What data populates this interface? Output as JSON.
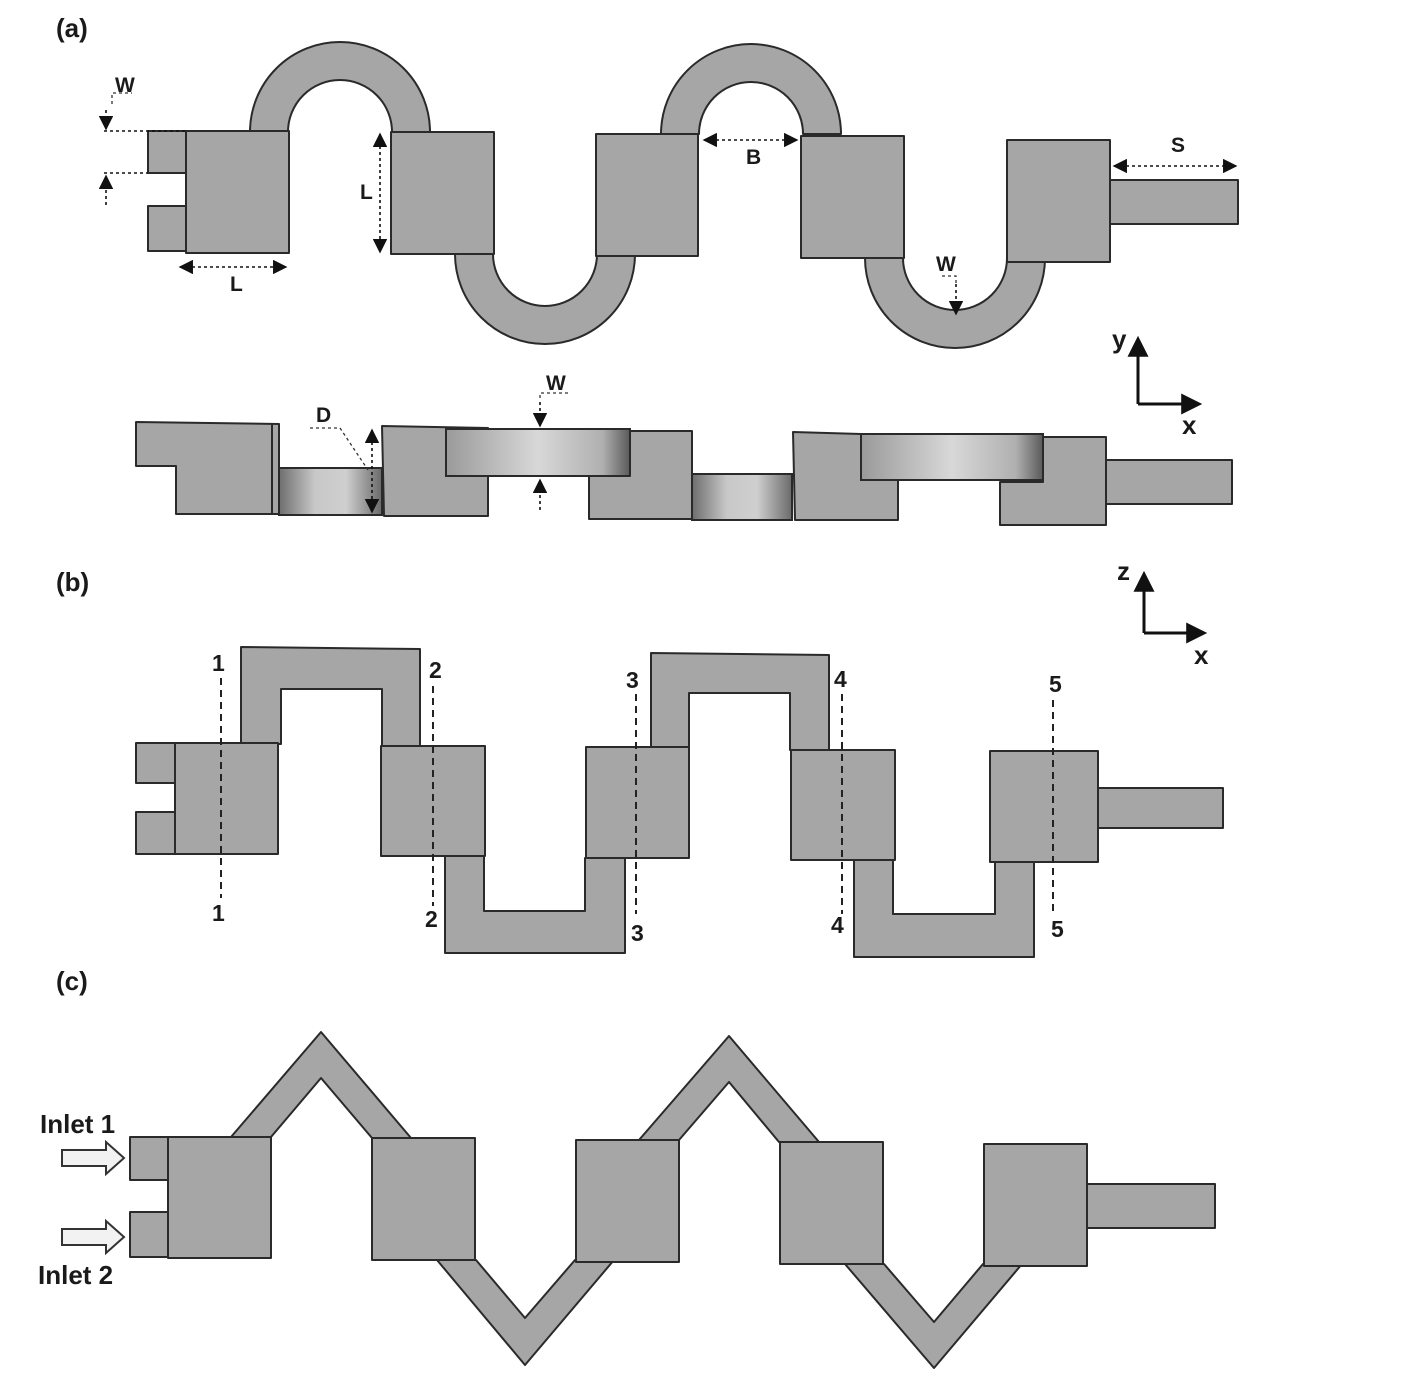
{
  "panels": {
    "a": {
      "label": "(a)",
      "dimensions": {
        "W_inlet": "W",
        "L_vertical": "L",
        "L_horizontal": "L",
        "B": "B",
        "S": "S",
        "W_bottom": "W",
        "W_side": "W",
        "D": "D"
      },
      "axes": {
        "vertical": "y",
        "horizontal": "x"
      }
    },
    "b": {
      "label": "(b)",
      "axes": {
        "vertical": "z",
        "horizontal": "x"
      },
      "sections": [
        {
          "top": "1",
          "bottom": "1"
        },
        {
          "top": "2",
          "bottom": "2"
        },
        {
          "top": "3",
          "bottom": "3"
        },
        {
          "top": "4",
          "bottom": "4"
        },
        {
          "top": "5",
          "bottom": "5"
        }
      ]
    },
    "c": {
      "label": "(c)",
      "inlets": [
        "Inlet 1",
        "Inlet 2"
      ]
    }
  },
  "colors": {
    "block_fill": "#a6a6a6",
    "edge": "#2a2a2a",
    "background": "#ffffff"
  }
}
